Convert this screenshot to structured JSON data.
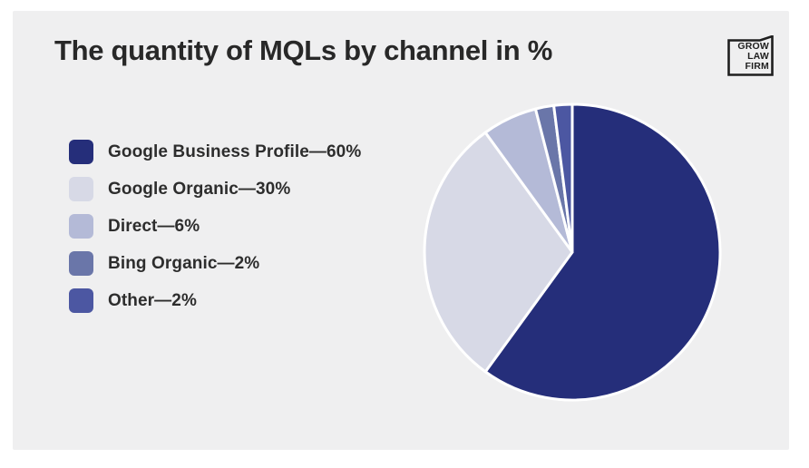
{
  "page": {
    "background": "#ffffff",
    "card_background": "#efeff0"
  },
  "header": {
    "title": "The quantity of MQLs by channel in %"
  },
  "logo": {
    "lines": [
      "GROW",
      "LAW",
      "FIRM"
    ]
  },
  "chart_data": {
    "type": "pie",
    "title": "The quantity of MQLs by channel in %",
    "legend_position": "left",
    "start_angle_deg": -90,
    "direction": "clockwise",
    "slice_border_color": "#ffffff",
    "slices": [
      {
        "label": "Google Business Profile",
        "value": 60,
        "color": "#252e7a",
        "legend_label": "Google Business Profile—60%"
      },
      {
        "label": "Google Organic",
        "value": 30,
        "color": "#d7d9e6",
        "legend_label": "Google Organic—30%"
      },
      {
        "label": "Direct",
        "value": 6,
        "color": "#b4bad7",
        "legend_label": "Direct—6%"
      },
      {
        "label": "Bing Organic",
        "value": 2,
        "color": "#6a76a9",
        "legend_label": "Bing Organic—2%"
      },
      {
        "label": "Other",
        "value": 2,
        "color": "#4c57a2",
        "legend_label": "Other—2%"
      }
    ]
  }
}
